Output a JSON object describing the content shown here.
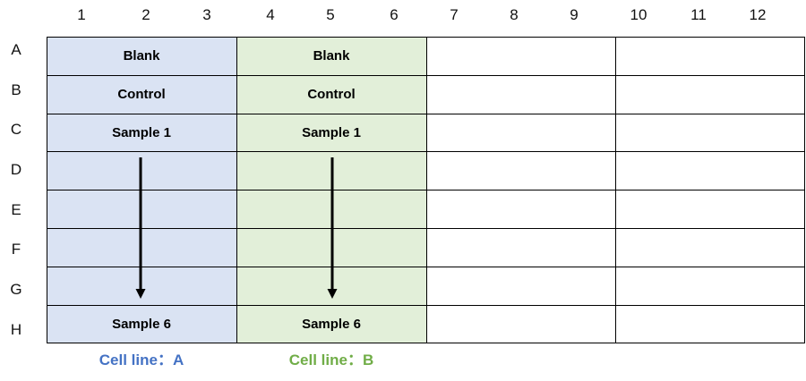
{
  "columns": [
    "1",
    "2",
    "3",
    "4",
    "5",
    "6",
    "7",
    "8",
    "9",
    "10",
    "11",
    "12"
  ],
  "rows": [
    "A",
    "B",
    "C",
    "D",
    "E",
    "F",
    "G",
    "H"
  ],
  "groups": [
    {
      "color": "#dae3f3",
      "label_color": "#4472c4",
      "label": "Cell line：A",
      "cells": {
        "A": "Blank",
        "B": "Control",
        "C": "Sample 1",
        "H": "Sample 6"
      }
    },
    {
      "color": "#e2efd9",
      "label_color": "#70ad47",
      "label": "Cell line：B",
      "cells": {
        "A": "Blank",
        "B": "Control",
        "C": "Sample 1",
        "H": "Sample 6"
      }
    }
  ]
}
